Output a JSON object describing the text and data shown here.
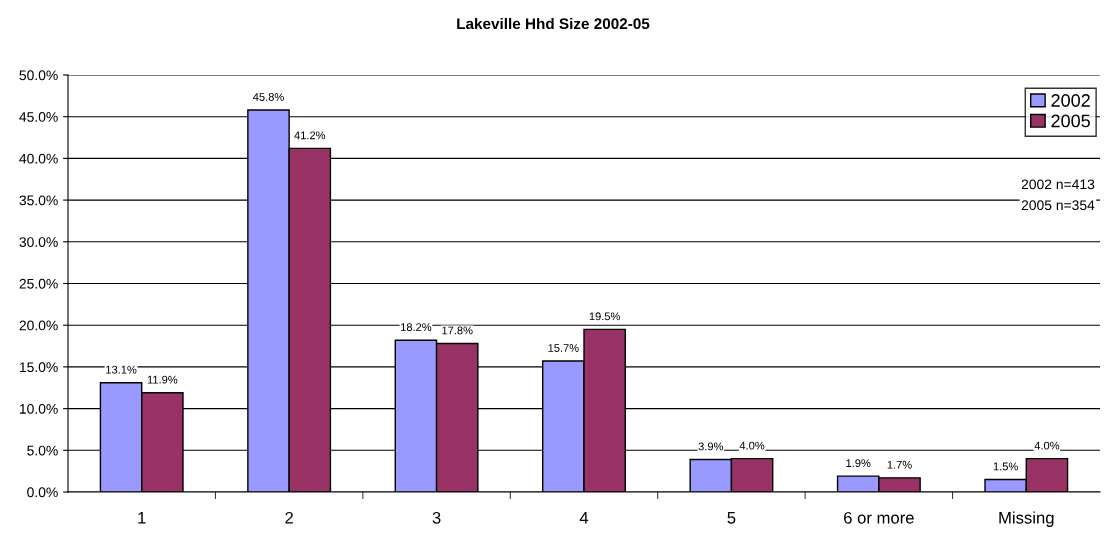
{
  "chart_data": {
    "type": "bar",
    "title": "Lakeville Hhd Size 2002-05",
    "categories": [
      "1",
      "2",
      "3",
      "4",
      "5",
      "6 or more",
      "Missing"
    ],
    "series": [
      {
        "name": "2002",
        "color": "#9999ff",
        "values": [
          13.1,
          45.8,
          18.2,
          15.7,
          3.9,
          1.9,
          1.5
        ],
        "value_labels": [
          "13.1%",
          "45.8%",
          "18.2%",
          "15.7%",
          "3.9%",
          "1.9%",
          "1.5%"
        ]
      },
      {
        "name": "2005",
        "color": "#993366",
        "values": [
          11.9,
          41.2,
          17.8,
          19.5,
          4.0,
          1.7,
          4.0
        ],
        "value_labels": [
          "11.9%",
          "41.2%",
          "17.8%",
          "19.5%",
          "4.0%",
          "1.7%",
          "4.0%"
        ]
      }
    ],
    "ylim": [
      0,
      50
    ],
    "yticks": [
      {
        "value": 0,
        "label": "0.0%"
      },
      {
        "value": 5,
        "label": "5.0%"
      },
      {
        "value": 10,
        "label": "10.0%"
      },
      {
        "value": 15,
        "label": "15.0%"
      },
      {
        "value": 20,
        "label": "20.0%"
      },
      {
        "value": 25,
        "label": "25.0%"
      },
      {
        "value": 30,
        "label": "30.0%"
      },
      {
        "value": 35,
        "label": "35.0%"
      },
      {
        "value": 40,
        "label": "40.0%"
      },
      {
        "value": 45,
        "label": "45.0%"
      },
      {
        "value": 50,
        "label": "50.0%"
      }
    ],
    "grid": "y",
    "legend": "top right",
    "annotations": [
      "2002 n=413",
      "2005 n=354"
    ]
  }
}
